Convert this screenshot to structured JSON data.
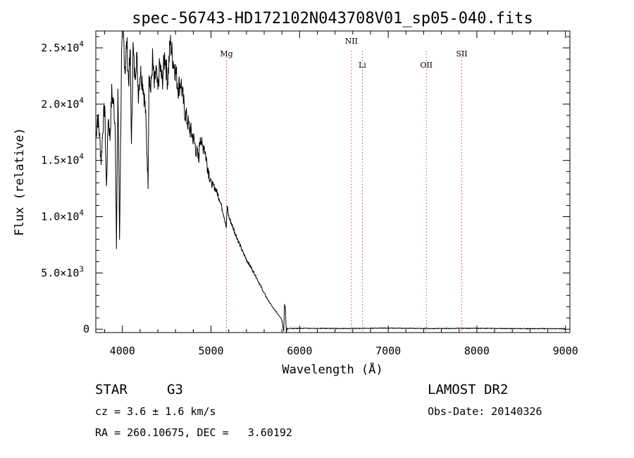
{
  "chart_data": {
    "type": "line",
    "title": "spec-56743-HD172102N043708V01_sp05-040.fits",
    "xlabel": "Wavelength (Å)",
    "ylabel": "Flux (relative)",
    "xlim": [
      3700,
      9050
    ],
    "ylim": [
      -300,
      26500
    ],
    "xticks": [
      4000,
      5000,
      6000,
      7000,
      8000,
      9000
    ],
    "xtick_labels": [
      "4000",
      "5000",
      "6000",
      "7000",
      "8000",
      "9000"
    ],
    "yticks": [
      0,
      5000,
      10000,
      15000,
      20000,
      25000
    ],
    "ytick_labels": [
      {
        "mantissa": "0",
        "exp": ""
      },
      {
        "mantissa": "5.0×10",
        "exp": "3"
      },
      {
        "mantissa": "1.0×10",
        "exp": "4"
      },
      {
        "mantissa": "1.5×10",
        "exp": "4"
      },
      {
        "mantissa": "2.0×10",
        "exp": "4"
      },
      {
        "mantissa": "2.5×10",
        "exp": "4"
      }
    ],
    "grid": false,
    "series": [
      {
        "x": [
          3700,
          3720,
          3740,
          3760,
          3780,
          3800,
          3820,
          3840,
          3860,
          3880,
          3900,
          3920,
          3933,
          3950,
          3968,
          3990,
          4010,
          4030,
          4050,
          4070,
          4090,
          4102,
          4120,
          4140,
          4160,
          4180,
          4200,
          4230,
          4260,
          4290,
          4300,
          4320,
          4340,
          4360,
          4380,
          4400,
          4420,
          4450,
          4480,
          4510,
          4540,
          4570,
          4600,
          4630,
          4660,
          4700,
          4750,
          4800,
          4861,
          4880,
          4900,
          4920,
          4950,
          5000,
          5050,
          5100,
          5150,
          5172,
          5183,
          5200,
          5250,
          5300,
          5350,
          5400,
          5450,
          5500,
          5550,
          5600,
          5650,
          5700,
          5750,
          5780,
          5800,
          5810,
          5820,
          5830,
          5840,
          5850,
          5860,
          5870,
          5880,
          5890,
          5900,
          6000,
          6500,
          7000,
          7500,
          8000,
          8500,
          9000
        ],
        "y": [
          17000,
          19000,
          17500,
          15000,
          18000,
          20000,
          12500,
          19000,
          17000,
          21000,
          20000,
          18000,
          7000,
          21500,
          8000,
          24000,
          26500,
          23000,
          25500,
          22000,
          24500,
          16000,
          25000,
          22500,
          24500,
          21000,
          23000,
          22000,
          19500,
          13000,
          23000,
          21000,
          24000,
          21500,
          23000,
          21000,
          23500,
          22000,
          24500,
          22000,
          25500,
          24000,
          23000,
          21500,
          22000,
          19500,
          18000,
          17000,
          15000,
          17500,
          16000,
          16500,
          15000,
          13000,
          12500,
          11500,
          10000,
          9000,
          11000,
          10000,
          9000,
          8000,
          7000,
          6200,
          5500,
          4800,
          4000,
          3200,
          2500,
          1900,
          1400,
          1100,
          800,
          300,
          -200,
          2200,
          1800,
          -300,
          100,
          0,
          50,
          100,
          60,
          80,
          60,
          100,
          60,
          80,
          50,
          40
        ]
      }
    ],
    "line_markers": [
      {
        "label": "Mg",
        "x": 5175,
        "label_row": "low"
      },
      {
        "label": "NII",
        "x": 6584,
        "label_row": "high"
      },
      {
        "label": "Li",
        "x": 6708,
        "label_row": "lower"
      },
      {
        "label": "OII",
        "x": 7430,
        "label_row": "lower"
      },
      {
        "label": "SII",
        "x": 7830,
        "label_row": "low"
      }
    ]
  },
  "info": {
    "object_class": "STAR",
    "subclass": "G3",
    "survey": "LAMOST DR2",
    "cz_text": "cz = 3.6 ± 1.6 km/s",
    "obs_date_text": "Obs-Date: 20140326",
    "coord_text": "RA = 260.10675, DEC =   3.60192"
  }
}
